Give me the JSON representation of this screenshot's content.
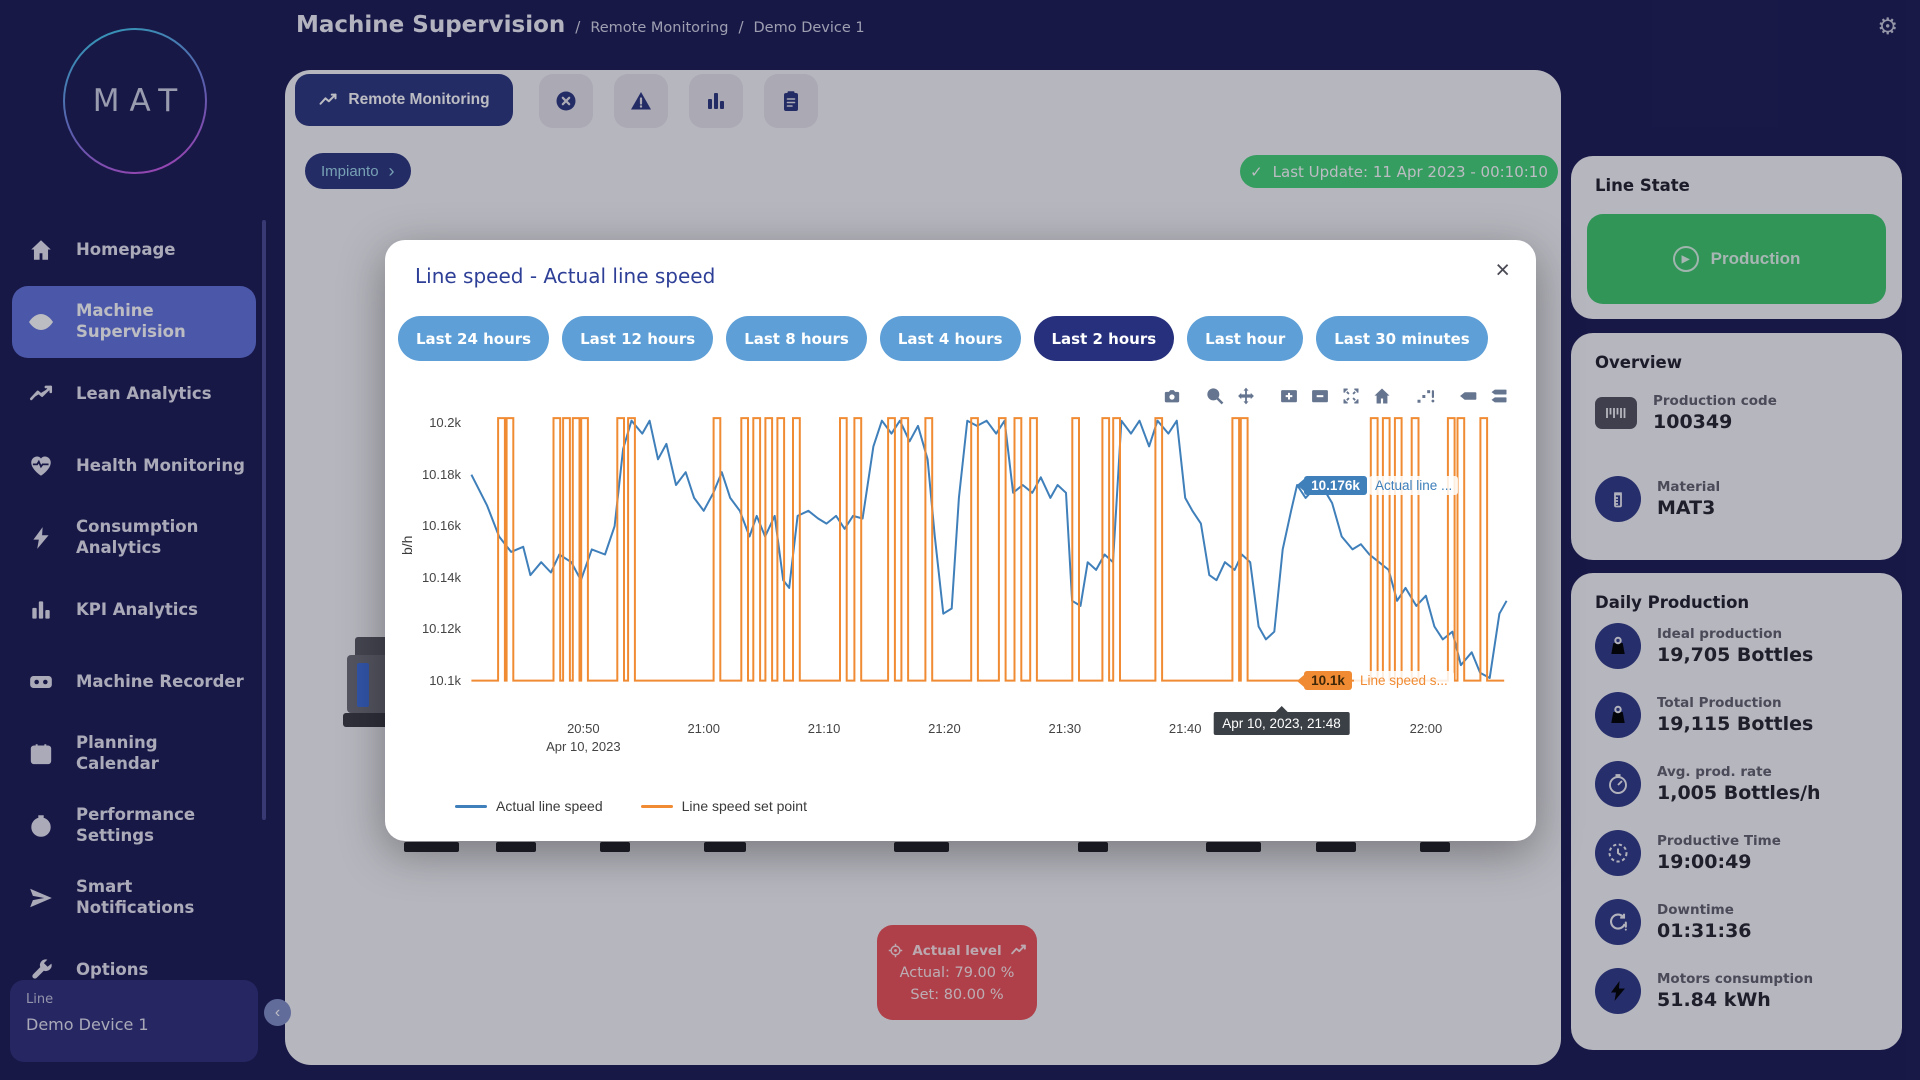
{
  "app": {
    "logo_text": "MAT"
  },
  "header": {
    "title": "Machine Supervision",
    "breadcrumbs": [
      "Remote Monitoring",
      "Demo Device 1"
    ],
    "separator": "/"
  },
  "sidebar": {
    "items": [
      {
        "label": "Homepage",
        "icon": "home"
      },
      {
        "label": "Machine Supervision",
        "icon": "eye",
        "active": true,
        "wrap": true
      },
      {
        "label": "Lean Analytics",
        "icon": "trend"
      },
      {
        "label": "Health Monitoring",
        "icon": "heart"
      },
      {
        "label": "Consumption Analytics",
        "icon": "bolt",
        "wrap": true
      },
      {
        "label": "KPI Analytics",
        "icon": "bars"
      },
      {
        "label": "Machine Recorder",
        "icon": "recorder"
      },
      {
        "label": "Planning Calendar",
        "icon": "calendar",
        "wrap": true
      },
      {
        "label": "Performance Settings",
        "icon": "gauge",
        "wrap": true
      },
      {
        "label": "Smart Notifications",
        "icon": "send",
        "wrap": true
      },
      {
        "label": "Options",
        "icon": "wrench"
      }
    ],
    "device_card": {
      "label": "Line",
      "value": "Demo Device 1"
    },
    "collapse_chevron": "‹"
  },
  "toolbar": {
    "active_tab": {
      "label": "Remote Monitoring",
      "icon": "trend"
    },
    "icon_buttons": [
      {
        "icon": "x-circle",
        "name": "alarms"
      },
      {
        "icon": "warning-triangle",
        "name": "warnings"
      },
      {
        "icon": "bars",
        "name": "statistics"
      },
      {
        "icon": "clipboard",
        "name": "report"
      }
    ],
    "impianto": {
      "label": "Impianto",
      "chevron": "›"
    },
    "last_update": {
      "icon": "check",
      "check_glyph": "✓",
      "text": "Last Update: 11 Apr 2023 - 00:10:10"
    }
  },
  "actual_level": {
    "title": "Actual level",
    "actual": "Actual: 79.00 %",
    "set": "Set: 80.00 %"
  },
  "right_panel": {
    "line_state": {
      "title": "Line State",
      "button": {
        "label": "Production",
        "icon": "play",
        "play_glyph": "▶",
        "color": "#2fa755"
      }
    },
    "overview": {
      "title": "Overview",
      "rows": [
        {
          "icon": "barcode",
          "label": "Production code",
          "value": "100349"
        },
        {
          "icon": "material",
          "label": "Material",
          "value": "MAT3"
        }
      ]
    },
    "daily": {
      "title": "Daily Production",
      "rows": [
        {
          "icon": "weight",
          "label": "Ideal production",
          "value": "19,705 Bottles"
        },
        {
          "icon": "weight",
          "label": "Total Production",
          "value": "19,115 Bottles"
        },
        {
          "icon": "gauge",
          "label": "Avg. prod. rate",
          "value": "1,005 Bottles/h"
        },
        {
          "icon": "clock",
          "label": "Productive Time",
          "value": "19:00:49"
        },
        {
          "icon": "downtime",
          "label": "Downtime",
          "value": "01:31:36"
        },
        {
          "icon": "bolt",
          "label": "Motors consumption",
          "value": "51.84 kWh"
        }
      ]
    }
  },
  "modal": {
    "title": "Line speed - Actual line speed",
    "close_glyph": "×",
    "ranges": [
      {
        "label": "Last 24 hours"
      },
      {
        "label": "Last 12 hours"
      },
      {
        "label": "Last 8 hours"
      },
      {
        "label": "Last 4 hours"
      },
      {
        "label": "Last 2 hours",
        "active": true
      },
      {
        "label": "Last hour"
      },
      {
        "label": "Last 30 minutes"
      }
    ]
  },
  "chart_data": {
    "type": "line",
    "title": "Line speed - Actual line speed",
    "xlabel": "",
    "ylabel": "b/h",
    "grid": false,
    "legend_position": "bottom-left",
    "y_ticks": [
      {
        "v": 10200,
        "label": "10.2k"
      },
      {
        "v": 10180,
        "label": "10.18k"
      },
      {
        "v": 10160,
        "label": "10.16k"
      },
      {
        "v": 10140,
        "label": "10.14k"
      },
      {
        "v": 10120,
        "label": "10.12k"
      },
      {
        "v": 10100,
        "label": "10.1k"
      }
    ],
    "x_ticks": [
      {
        "t": 9,
        "label": "20:50",
        "sub": "Apr 10, 2023"
      },
      {
        "t": 19,
        "label": "21:00"
      },
      {
        "t": 29,
        "label": "21:10"
      },
      {
        "t": 39,
        "label": "21:20"
      },
      {
        "t": 49,
        "label": "21:30"
      },
      {
        "t": 59,
        "label": "21:40"
      },
      {
        "t": 69,
        "label": "21:50"
      },
      {
        "t": 79,
        "label": "22:00"
      }
    ],
    "domain": {
      "t_min": -0.5,
      "t_max": 85.9,
      "v_min": 10087,
      "v_max": 10204,
      "t_zero_time": "20:41",
      "t_unit": "minutes"
    },
    "series": [
      {
        "name": "Actual line speed",
        "color": "#3f7fba",
        "type": "line",
        "points": [
          [
            -0.3,
            10180
          ],
          [
            1,
            10168
          ],
          [
            2,
            10156
          ],
          [
            3,
            10150
          ],
          [
            4,
            10152
          ],
          [
            4.6,
            10141
          ],
          [
            5.5,
            10146
          ],
          [
            6.3,
            10142
          ],
          [
            7,
            10149
          ],
          [
            8,
            10146
          ],
          [
            8.8,
            10139
          ],
          [
            9.7,
            10151
          ],
          [
            10.8,
            10149
          ],
          [
            11.6,
            10160
          ],
          [
            12.3,
            10190
          ],
          [
            13,
            10201
          ],
          [
            13.9,
            10196
          ],
          [
            14.5,
            10201
          ],
          [
            15.2,
            10186
          ],
          [
            15.9,
            10192
          ],
          [
            16.7,
            10176
          ],
          [
            17.5,
            10181
          ],
          [
            18.2,
            10171
          ],
          [
            19,
            10166
          ],
          [
            19.8,
            10173
          ],
          [
            20.5,
            10181
          ],
          [
            21.2,
            10171
          ],
          [
            22,
            10166
          ],
          [
            22.8,
            10156
          ],
          [
            23.4,
            10164
          ],
          [
            24.1,
            10156
          ],
          [
            24.9,
            10164
          ],
          [
            25.6,
            10139
          ],
          [
            26.1,
            10136
          ],
          [
            26.8,
            10164
          ],
          [
            27.7,
            10166
          ],
          [
            28.5,
            10163
          ],
          [
            29.2,
            10161
          ],
          [
            30,
            10164
          ],
          [
            30.7,
            10159
          ],
          [
            31.4,
            10164
          ],
          [
            32.2,
            10163
          ],
          [
            33.1,
            10191
          ],
          [
            33.8,
            10201
          ],
          [
            34.6,
            10196
          ],
          [
            35.3,
            10201
          ],
          [
            36.1,
            10193
          ],
          [
            36.8,
            10199
          ],
          [
            37.6,
            10186
          ],
          [
            38.2,
            10156
          ],
          [
            38.9,
            10126
          ],
          [
            39.6,
            10128
          ],
          [
            40.2,
            10171
          ],
          [
            40.9,
            10201
          ],
          [
            41.7,
            10199
          ],
          [
            42.5,
            10201
          ],
          [
            43.3,
            10196
          ],
          [
            44,
            10201
          ],
          [
            44.7,
            10173
          ],
          [
            45.5,
            10176
          ],
          [
            46.3,
            10173
          ],
          [
            47,
            10179
          ],
          [
            47.8,
            10171
          ],
          [
            48.4,
            10176
          ],
          [
            49.1,
            10173
          ],
          [
            49.6,
            10131
          ],
          [
            50.3,
            10129
          ],
          [
            50.9,
            10146
          ],
          [
            51.6,
            10143
          ],
          [
            52.3,
            10149
          ],
          [
            53,
            10146
          ],
          [
            53.7,
            10201
          ],
          [
            54.5,
            10196
          ],
          [
            55.2,
            10201
          ],
          [
            56,
            10191
          ],
          [
            56.7,
            10201
          ],
          [
            57.6,
            10196
          ],
          [
            58.3,
            10201
          ],
          [
            59,
            10171
          ],
          [
            59.6,
            10166
          ],
          [
            60.3,
            10161
          ],
          [
            61,
            10141
          ],
          [
            61.6,
            10139
          ],
          [
            62.3,
            10146
          ],
          [
            63.1,
            10143
          ],
          [
            63.7,
            10149
          ],
          [
            64.4,
            10146
          ],
          [
            65.1,
            10121
          ],
          [
            65.7,
            10116
          ],
          [
            66.4,
            10119
          ],
          [
            67.1,
            10151
          ],
          [
            67.8,
            10166
          ],
          [
            68.3,
            10176
          ],
          [
            69,
            10171
          ],
          [
            70,
            10176
          ],
          [
            70.7,
            10173
          ],
          [
            71.2,
            10169
          ],
          [
            72,
            10156
          ],
          [
            72.9,
            10151
          ],
          [
            73.6,
            10153
          ],
          [
            74.3,
            10149
          ],
          [
            75.1,
            10146
          ],
          [
            75.9,
            10143
          ],
          [
            76.6,
            10131
          ],
          [
            77.3,
            10136
          ],
          [
            78.2,
            10129
          ],
          [
            79,
            10133
          ],
          [
            79.7,
            10121
          ],
          [
            80.4,
            10116
          ],
          [
            81.2,
            10119
          ],
          [
            81.9,
            10106
          ],
          [
            82.8,
            10111
          ],
          [
            83.5,
            10103
          ],
          [
            84.3,
            10101
          ],
          [
            85.1,
            10126
          ],
          [
            85.7,
            10131
          ]
        ]
      },
      {
        "name": "Line speed set point",
        "color": "#f08b33",
        "type": "step-pulse",
        "baseline": 10100,
        "pulse_top": 10202,
        "pulse_half_width": 0.28,
        "t_start": -0.3,
        "t_end": 85.5,
        "pulses": [
          2.2,
          2.9,
          6.8,
          7.6,
          8.4,
          9.1,
          12.1,
          13.0,
          20.1,
          22.4,
          23.4,
          24.4,
          25.4,
          26.7,
          30.6,
          31.8,
          34.6,
          35.7,
          37.7,
          41.5,
          43.8,
          45.1,
          46.4,
          49.9,
          52.4,
          53.3,
          56.8,
          63.2,
          63.9,
          74.7,
          75.7,
          76.7,
          78.1,
          81.1,
          81.9,
          83.8
        ]
      }
    ],
    "tooltips": {
      "t": 68.3,
      "x_tooltip": {
        "t": 67,
        "label": "Apr 10, 2023, 21:48"
      },
      "blue": {
        "v": 10176,
        "label": "10.176k",
        "name": "Actual line ..."
      },
      "orange": {
        "v": 10100,
        "label": "10.1k",
        "name": "Line speed s..."
      }
    },
    "legend": [
      {
        "label": "Actual line speed",
        "color": "#3f7fba"
      },
      {
        "label": "Line speed set point",
        "color": "#f08b33"
      }
    ],
    "modebar": [
      "camera",
      "zoom-box",
      "pan",
      "zoom-in",
      "zoom-out",
      "autoscale",
      "home",
      "spikelines",
      "hover-closest",
      "hover-compare"
    ]
  }
}
